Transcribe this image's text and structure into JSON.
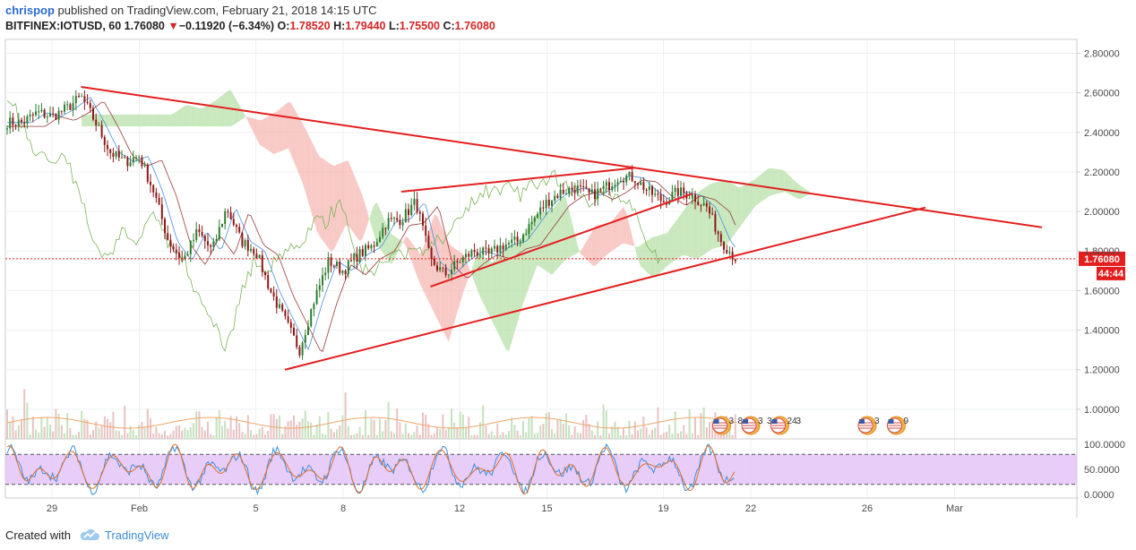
{
  "header": {
    "user": "chrispop",
    "published": "published on TradingView.com, February 21, 2018 14:15 UTC",
    "symbol": "BITFINEX:IOTUSD, 60",
    "last": "1.76080",
    "change_arrow": "▼",
    "change": "−0.11920 (−6.34%)",
    "o_label": "O:",
    "o_value": "1.78520",
    "h_label": "H:",
    "h_value": "1.79440",
    "l_label": "L:",
    "l_value": "1.75500",
    "c_label": "C:",
    "c_value": "1.76080"
  },
  "footer": {
    "created": "Created with",
    "brand": "TradingView",
    "logo_icon": "tradingview-cloud-icon"
  },
  "chart_data": {
    "type": "candlestick",
    "price_axis": {
      "ticks": [
        "2.80000",
        "2.60000",
        "2.40000",
        "2.20000",
        "2.00000",
        "1.80000",
        "1.60000",
        "1.40000",
        "1.20000",
        "1.00000"
      ],
      "range": [
        0.85,
        2.87
      ]
    },
    "oscillator_axis": {
      "ticks": [
        "100.0000",
        "50.0000",
        "0.0000"
      ],
      "band": [
        20,
        80
      ]
    },
    "x_ticks": [
      "29",
      "Feb",
      "5",
      "8",
      "12",
      "15",
      "19",
      "22",
      "26",
      "Mar"
    ],
    "last_price_label": "1.76080",
    "countdown_label": "44:44",
    "colors": {
      "up": "#2e7d32",
      "down": "#8b1a1a",
      "trendline": "#e41e1e",
      "cloud_bull": "#b7e0a8",
      "cloud_bear": "#f5b7b1",
      "span_a": "#7cb35b",
      "osc_fill": "#e6c8f7",
      "osc_k": "#3b8fd9",
      "osc_d": "#e0702a"
    },
    "trendlines": [
      {
        "name": "descending resistance",
        "points": [
          [
            "Jan 30",
            2.63
          ],
          [
            "Mar 4",
            1.92
          ]
        ]
      },
      {
        "name": "rising support",
        "points": [
          [
            "Feb 6",
            1.2
          ],
          [
            "Feb 28",
            2.02
          ]
        ]
      },
      {
        "name": "wedge upper",
        "points": [
          [
            "Feb 10",
            2.1
          ],
          [
            "Feb 18",
            2.22
          ]
        ]
      },
      {
        "name": "wedge lower",
        "points": [
          [
            "Feb 11",
            1.62
          ],
          [
            "Feb 20",
            2.09
          ]
        ]
      }
    ],
    "event_markers": [
      {
        "x": "Feb 21",
        "labels": [
          "3",
          "8"
        ]
      },
      {
        "x": "Feb 22",
        "labels": [
          "3",
          "3"
        ]
      },
      {
        "x": "Feb 23",
        "labels": [
          "24",
          "3"
        ]
      },
      {
        "x": "Feb 26",
        "labels": [
          "3"
        ]
      },
      {
        "x": "Feb 27",
        "labels": [
          "9"
        ]
      }
    ],
    "path_points": [
      [
        "Jan 28 00:00",
        2.45
      ],
      [
        "Jan 28 12:00",
        2.5
      ],
      [
        "Jan 29 00:00",
        2.48
      ],
      [
        "Jan 29 12:00",
        2.52
      ],
      [
        "Jan 30 00:00",
        2.58
      ],
      [
        "Jan 30 12:00",
        2.45
      ],
      [
        "Jan 31 00:00",
        2.3
      ],
      [
        "Jan 31 12:00",
        2.25
      ],
      [
        "Feb 1 00:00",
        2.28
      ],
      [
        "Feb 1 12:00",
        2.1
      ],
      [
        "Feb 2 00:00",
        1.85
      ],
      [
        "Feb 2 12:00",
        1.75
      ],
      [
        "Feb 3 00:00",
        1.9
      ],
      [
        "Feb 3 12:00",
        1.8
      ],
      [
        "Feb 4 00:00",
        2.02
      ],
      [
        "Feb 4 12:00",
        1.85
      ],
      [
        "Feb 5 00:00",
        1.8
      ],
      [
        "Feb 5 12:00",
        1.6
      ],
      [
        "Feb 6 00:00",
        1.45
      ],
      [
        "Feb 6 12:00",
        1.3
      ],
      [
        "Feb 7 00:00",
        1.55
      ],
      [
        "Feb 7 12:00",
        1.75
      ],
      [
        "Feb 8 00:00",
        1.7
      ],
      [
        "Feb 8 12:00",
        1.78
      ],
      [
        "Feb 9 00:00",
        1.82
      ],
      [
        "Feb 9 12:00",
        1.95
      ],
      [
        "Feb 10 00:00",
        1.96
      ],
      [
        "Feb 10 12:00",
        2.05
      ],
      [
        "Feb 11 00:00",
        1.75
      ],
      [
        "Feb 11 12:00",
        1.68
      ],
      [
        "Feb 12 00:00",
        1.75
      ],
      [
        "Feb 12 12:00",
        1.8
      ],
      [
        "Feb 13 00:00",
        1.78
      ],
      [
        "Feb 13 12:00",
        1.83
      ],
      [
        "Feb 14 00:00",
        1.85
      ],
      [
        "Feb 14 12:00",
        1.95
      ],
      [
        "Feb 15 00:00",
        2.05
      ],
      [
        "Feb 15 12:00",
        2.1
      ],
      [
        "Feb 16 00:00",
        2.12
      ],
      [
        "Feb 16 12:00",
        2.08
      ],
      [
        "Feb 17 00:00",
        2.12
      ],
      [
        "Feb 17 12:00",
        2.18
      ],
      [
        "Feb 18 00:00",
        2.17
      ],
      [
        "Feb 18 12:00",
        2.1
      ],
      [
        "Feb 19 00:00",
        2.05
      ],
      [
        "Feb 19 12:00",
        2.1
      ],
      [
        "Feb 20 00:00",
        2.08
      ],
      [
        "Feb 20 12:00",
        2.02
      ],
      [
        "Feb 21 00:00",
        1.85
      ],
      [
        "Feb 21 12:00",
        1.76
      ]
    ]
  }
}
